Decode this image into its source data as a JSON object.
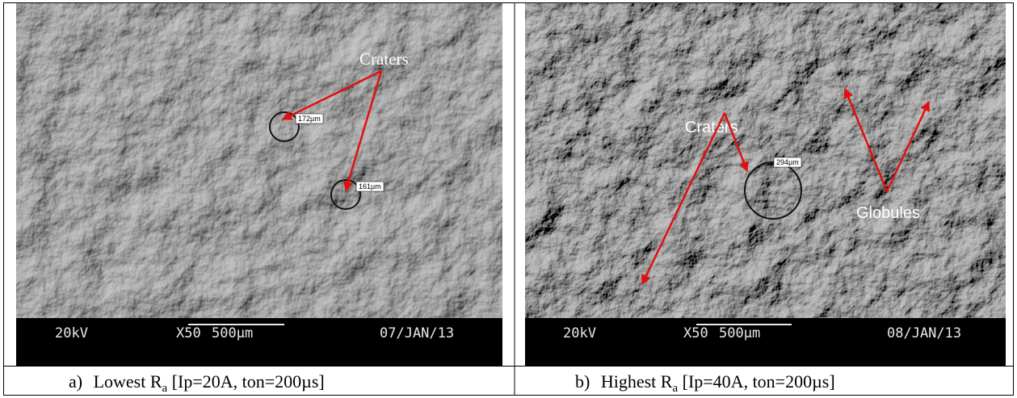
{
  "panels": [
    {
      "annotation": "Craters",
      "measures": [
        "172µm",
        "161µm"
      ],
      "info": {
        "voltage": "20kV",
        "magnification": "X50",
        "scale": "500µm",
        "date": "07/JAN/13"
      },
      "caption": {
        "label": "a)",
        "text": "Lowest R",
        "subscript": "a",
        "params": "[Ip=20A, ton=200µs]"
      }
    },
    {
      "annotation": "Craters",
      "annotation2": "Globules",
      "measures": [
        "294µm"
      ],
      "info": {
        "voltage": "20kV",
        "magnification": "X50",
        "scale": "500µm",
        "date": "08/JAN/13"
      },
      "caption": {
        "label": "b)",
        "text": "Highest R",
        "subscript": "a",
        "params": "[Ip=40A, ton=200µs]"
      }
    }
  ]
}
